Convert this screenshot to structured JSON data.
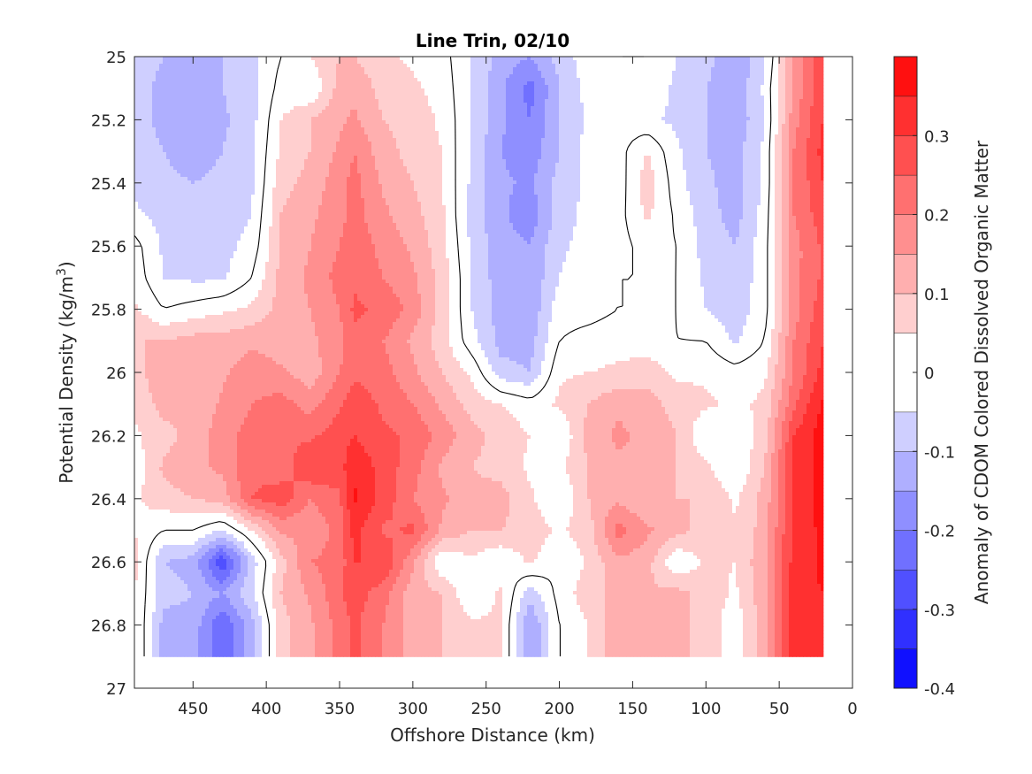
{
  "chart_data": {
    "type": "heatmap",
    "subtype": "filled-contour",
    "title": "Line Trin, 02/10",
    "xlabel": "Offshore Distance (km)",
    "ylabel_main": "Potential Density (kg/m",
    "ylabel_sup": "3",
    "ylabel_close": ")",
    "colorbar_label": "Anomaly of CDOM Colored Dissolved Organic Matter",
    "xlim": [
      490,
      0
    ],
    "x_reversed": true,
    "ylim": [
      25,
      27
    ],
    "y_reversed": true,
    "x_ticks": [
      450,
      400,
      350,
      300,
      250,
      200,
      150,
      100,
      50,
      0
    ],
    "y_ticks": [
      25,
      25.2,
      25.4,
      25.6,
      25.8,
      26,
      26.2,
      26.4,
      26.6,
      26.8,
      27
    ],
    "y_tick_labels": [
      "25",
      "25.2",
      "25.4",
      "25.6",
      "25.8",
      "26",
      "26.2",
      "26.4",
      "26.6",
      "26.8",
      "27"
    ],
    "colorbar_range": [
      -0.4,
      0.4
    ],
    "colorbar_ticks": [
      0.3,
      0.2,
      0.1,
      0,
      -0.1,
      -0.2,
      -0.3,
      -0.4
    ],
    "colorbar_tick_labels": [
      "0.3",
      "0.2",
      "0.1",
      "0",
      "-0.1",
      "-0.2",
      "-0.3",
      "-0.4"
    ],
    "levels": [
      -0.4,
      -0.35,
      -0.3,
      -0.25,
      -0.2,
      -0.15,
      -0.1,
      -0.05,
      0.05,
      0.1,
      0.15,
      0.2,
      0.25,
      0.3,
      0.35,
      0.4
    ],
    "colormap": "blue-white-red",
    "data_extent_sigma_max": 26.9,
    "columns": [
      {
        "x": 490,
        "values": [
          -0.06,
          -0.07,
          -0.07,
          -0.07,
          -0.06,
          -0.04,
          0.02,
          0.03,
          0.06,
          0.1,
          0.07,
          0.06,
          0.04,
          0.02,
          0.04,
          0.05,
          0.07,
          0.05,
          0.06
        ]
      },
      {
        "x": 470,
        "values": [
          -0.1,
          -0.12,
          -0.12,
          -0.1,
          -0.09,
          -0.07,
          -0.06,
          -0.05,
          0.0,
          0.1,
          0.15,
          0.12,
          0.08,
          0.11,
          0.08,
          0.0,
          -0.1,
          -0.08,
          -0.12
        ]
      },
      {
        "x": 450,
        "values": [
          -0.12,
          -0.12,
          -0.13,
          -0.12,
          -0.1,
          -0.09,
          -0.07,
          -0.06,
          0.02,
          0.12,
          0.12,
          0.1,
          0.12,
          0.14,
          0.1,
          0.0,
          -0.12,
          -0.1,
          -0.12
        ]
      },
      {
        "x": 430,
        "values": [
          -0.1,
          -0.1,
          -0.11,
          -0.1,
          -0.09,
          -0.08,
          -0.07,
          -0.06,
          0.04,
          0.12,
          0.14,
          0.16,
          0.18,
          0.16,
          0.12,
          -0.05,
          -0.3,
          -0.15,
          -0.25
        ]
      },
      {
        "x": 410,
        "values": [
          -0.06,
          -0.07,
          -0.07,
          -0.06,
          -0.06,
          -0.05,
          -0.03,
          0.0,
          0.06,
          0.14,
          0.18,
          0.2,
          0.22,
          0.24,
          0.25,
          0.05,
          -0.08,
          -0.06,
          -0.12
        ]
      },
      {
        "x": 390,
        "values": [
          0.0,
          0.02,
          0.05,
          0.06,
          0.08,
          0.1,
          0.1,
          0.12,
          0.12,
          0.12,
          0.16,
          0.22,
          0.24,
          0.22,
          0.28,
          0.16,
          0.08,
          0.1,
          0.08
        ]
      },
      {
        "x": 370,
        "values": [
          0.05,
          0.0,
          0.1,
          0.1,
          0.12,
          0.14,
          0.15,
          0.16,
          0.15,
          0.14,
          0.12,
          0.18,
          0.24,
          0.3,
          0.2,
          0.16,
          0.2,
          0.16,
          0.14
        ]
      },
      {
        "x": 350,
        "values": [
          0.1,
          0.12,
          0.14,
          0.16,
          0.18,
          0.18,
          0.2,
          0.22,
          0.2,
          0.18,
          0.2,
          0.24,
          0.28,
          0.28,
          0.24,
          0.22,
          0.22,
          0.24,
          0.22
        ]
      },
      {
        "x": 340,
        "values": [
          0.1,
          0.14,
          0.16,
          0.2,
          0.22,
          0.22,
          0.24,
          0.24,
          0.26,
          0.24,
          0.24,
          0.28,
          0.3,
          0.34,
          0.36,
          0.32,
          0.3,
          0.28,
          0.26
        ]
      },
      {
        "x": 320,
        "values": [
          0.06,
          0.08,
          0.1,
          0.12,
          0.14,
          0.16,
          0.18,
          0.2,
          0.24,
          0.2,
          0.22,
          0.24,
          0.26,
          0.28,
          0.28,
          0.24,
          0.3,
          0.22,
          0.2
        ]
      },
      {
        "x": 300,
        "values": [
          0.04,
          0.06,
          0.08,
          0.08,
          0.1,
          0.12,
          0.14,
          0.16,
          0.18,
          0.14,
          0.16,
          0.2,
          0.24,
          0.22,
          0.2,
          0.26,
          0.16,
          0.12,
          0.12
        ]
      },
      {
        "x": 280,
        "values": [
          0.02,
          0.03,
          0.04,
          0.05,
          0.05,
          0.06,
          0.07,
          0.08,
          0.08,
          0.07,
          0.1,
          0.14,
          0.18,
          0.14,
          0.16,
          0.14,
          0.0,
          0.1,
          0.1
        ]
      },
      {
        "x": 260,
        "values": [
          -0.05,
          -0.05,
          -0.05,
          -0.06,
          -0.06,
          -0.07,
          -0.06,
          -0.05,
          -0.05,
          -0.03,
          0.04,
          0.08,
          0.12,
          0.1,
          0.12,
          0.1,
          0.04,
          0.0,
          0.06
        ]
      },
      {
        "x": 240,
        "values": [
          -0.12,
          -0.14,
          -0.14,
          -0.15,
          -0.14,
          -0.14,
          -0.13,
          -0.13,
          -0.12,
          -0.12,
          -0.08,
          0.05,
          0.08,
          0.08,
          0.12,
          0.1,
          0.0,
          0.06,
          0.06
        ]
      },
      {
        "x": 220,
        "values": [
          -0.15,
          -0.22,
          -0.2,
          -0.18,
          -0.16,
          -0.18,
          -0.15,
          -0.14,
          -0.14,
          -0.12,
          -0.1,
          0.02,
          0.05,
          0.04,
          0.06,
          0.08,
          0.06,
          -0.08,
          -0.15
        ]
      },
      {
        "x": 200,
        "values": [
          -0.08,
          -0.1,
          -0.1,
          -0.1,
          -0.08,
          -0.08,
          -0.06,
          -0.05,
          -0.02,
          0.0,
          0.04,
          0.06,
          0.0,
          0.04,
          0.0,
          0.04,
          0.0,
          0.02,
          0.0
        ]
      },
      {
        "x": 180,
        "values": [
          -0.02,
          -0.03,
          -0.04,
          -0.03,
          -0.04,
          -0.03,
          -0.03,
          -0.02,
          -0.02,
          0.02,
          0.05,
          0.1,
          0.12,
          0.1,
          0.1,
          0.08,
          0.06,
          0.08,
          0.05
        ]
      },
      {
        "x": 160,
        "values": [
          0.0,
          0.0,
          -0.02,
          -0.02,
          -0.03,
          -0.02,
          -0.02,
          0.0,
          0.0,
          0.03,
          0.06,
          0.14,
          0.16,
          0.14,
          0.14,
          0.22,
          0.14,
          0.12,
          0.14
        ]
      },
      {
        "x": 140,
        "values": [
          0.0,
          -0.02,
          -0.04,
          0.05,
          0.08,
          0.06,
          0.02,
          0.0,
          0.0,
          0.02,
          0.08,
          0.12,
          0.14,
          0.12,
          0.1,
          0.16,
          0.12,
          0.1,
          0.1
        ]
      },
      {
        "x": 120,
        "values": [
          -0.05,
          -0.06,
          -0.06,
          -0.04,
          -0.03,
          -0.01,
          0.0,
          0.0,
          0.0,
          0.0,
          0.04,
          0.08,
          0.1,
          0.1,
          0.1,
          0.12,
          0.0,
          0.12,
          0.12
        ]
      },
      {
        "x": 100,
        "values": [
          -0.08,
          -0.1,
          -0.1,
          -0.1,
          -0.09,
          -0.08,
          -0.07,
          -0.06,
          -0.05,
          0.0,
          0.04,
          0.06,
          0.0,
          0.06,
          0.1,
          0.08,
          0.06,
          0.08,
          0.08
        ]
      },
      {
        "x": 80,
        "values": [
          -0.15,
          -0.14,
          -0.14,
          -0.12,
          -0.12,
          -0.12,
          -0.1,
          -0.09,
          -0.08,
          -0.06,
          0.02,
          0.04,
          0.0,
          0.0,
          0.04,
          0.06,
          0.05,
          0.04,
          0.02
        ]
      },
      {
        "x": 60,
        "values": [
          -0.06,
          -0.04,
          -0.05,
          -0.04,
          -0.04,
          -0.03,
          -0.02,
          -0.02,
          -0.02,
          0.0,
          0.04,
          0.06,
          0.08,
          0.1,
          0.12,
          0.12,
          0.14,
          0.14,
          0.12
        ]
      },
      {
        "x": 40,
        "values": [
          0.15,
          0.16,
          0.18,
          0.2,
          0.2,
          0.2,
          0.18,
          0.18,
          0.18,
          0.2,
          0.2,
          0.24,
          0.3,
          0.3,
          0.3,
          0.32,
          0.32,
          0.34,
          0.34
        ]
      },
      {
        "x": 20,
        "values": [
          0.3,
          0.3,
          0.3,
          0.32,
          0.3,
          0.28,
          0.26,
          0.26,
          0.28,
          0.3,
          0.32,
          0.36,
          0.38,
          0.38,
          0.38,
          0.36,
          0.36,
          0.35,
          0.35
        ]
      }
    ],
    "sigma_rows": [
      25.0,
      25.1,
      25.2,
      25.3,
      25.4,
      25.5,
      25.6,
      25.7,
      25.8,
      25.9,
      26.0,
      26.1,
      26.2,
      26.3,
      26.4,
      26.5,
      26.6,
      26.7,
      26.8
    ]
  }
}
